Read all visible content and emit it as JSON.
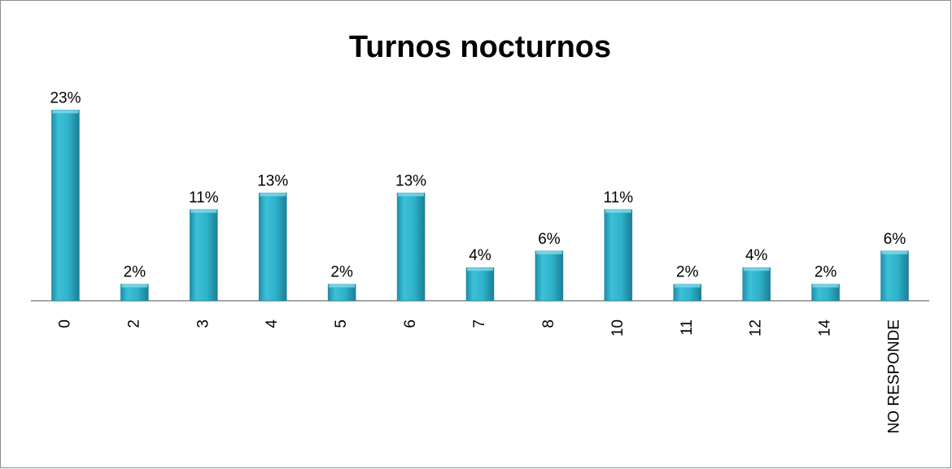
{
  "chart_data": {
    "type": "bar",
    "title": "Turnos nocturnos",
    "categories": [
      "0",
      "2",
      "3",
      "4",
      "5",
      "6",
      "7",
      "8",
      "10",
      "11",
      "12",
      "14",
      "NO RESPONDE"
    ],
    "values": [
      23,
      2,
      11,
      13,
      2,
      13,
      4,
      6,
      11,
      2,
      4,
      2,
      6
    ],
    "value_labels": [
      "23%",
      "2%",
      "11%",
      "13%",
      "2%",
      "13%",
      "4%",
      "6%",
      "11%",
      "2%",
      "4%",
      "2%",
      "6%"
    ],
    "color": "#2fb3cc"
  }
}
